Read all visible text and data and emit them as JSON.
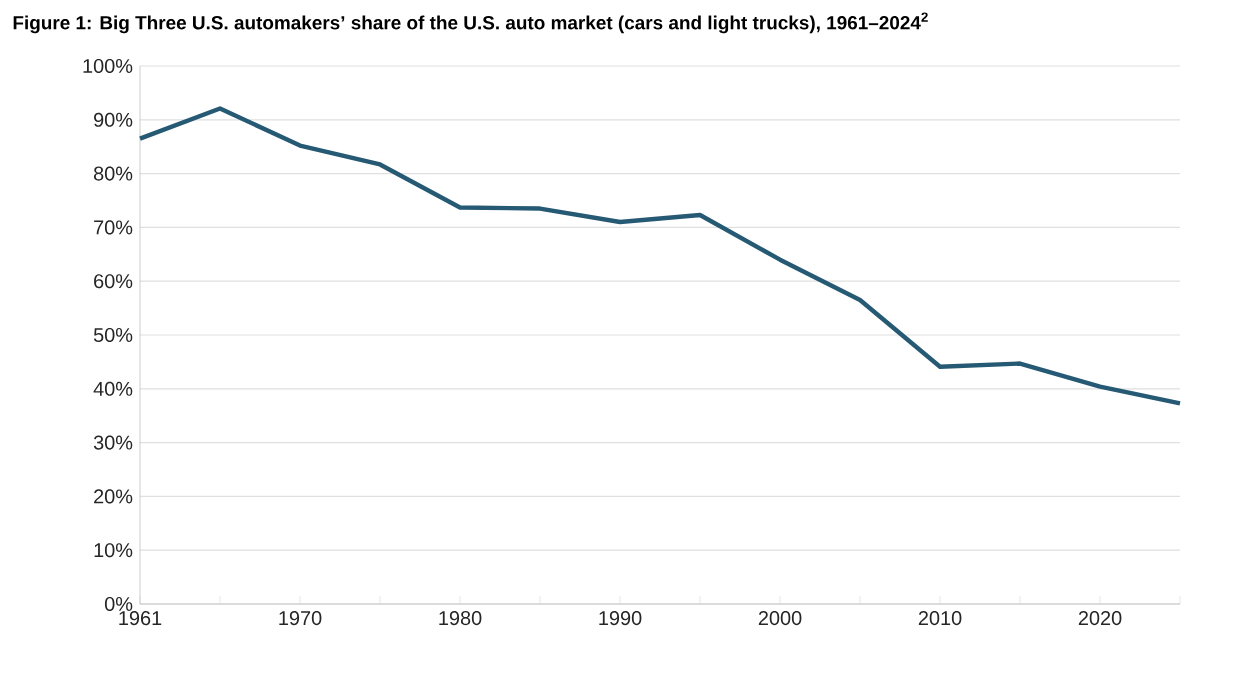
{
  "chart_data": {
    "type": "line",
    "title": "Figure 1: Big Three U.S. automakers’ share of the U.S. auto market (cars and light trucks), 1961–2024$^{2}$",
    "categories": [
      "1961",
      null,
      "1970",
      null,
      "1980",
      null,
      "1990",
      null,
      "2000",
      null,
      "2010",
      null,
      "2020",
      null
    ],
    "values": [
      86.5,
      92.1,
      85.2,
      81.7,
      73.7,
      73.5,
      71.0,
      72.3,
      64.0,
      56.5,
      44.1,
      44.7,
      40.4,
      37.3
    ],
    "color": "#265a74",
    "ylim": [
      0,
      100
    ],
    "yticks": [
      {
        "value": 0,
        "label": "0%"
      },
      {
        "value": 10,
        "label": "10%"
      },
      {
        "value": 20,
        "label": "20%"
      },
      {
        "value": 30,
        "label": "30%"
      },
      {
        "value": 40,
        "label": "40%"
      },
      {
        "value": 50,
        "label": "50%"
      },
      {
        "value": 60,
        "label": "60%"
      },
      {
        "value": 70,
        "label": "70%"
      },
      {
        "value": 80,
        "label": "80%"
      },
      {
        "value": 90,
        "label": "90%"
      },
      {
        "value": 100,
        "label": "100%"
      }
    ],
    "grid": "y",
    "marker": "none",
    "line_style": "solid"
  }
}
